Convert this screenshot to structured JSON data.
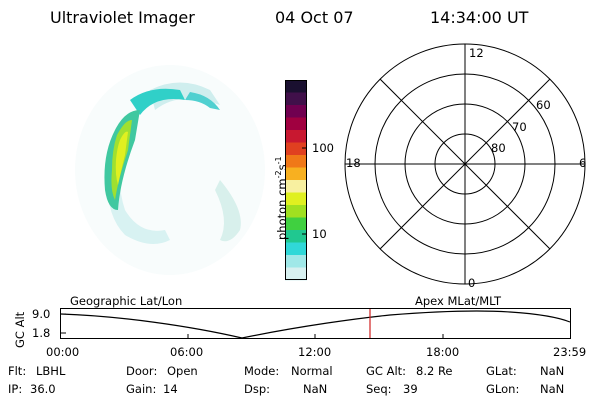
{
  "header": {
    "instrument": "Ultraviolet Imager",
    "date": "04 Oct 07",
    "time": "14:34:00 UT"
  },
  "colorbar": {
    "label": "photon cm^-2 s^-1",
    "label_parts": [
      "photon cm",
      "-2",
      "s",
      "-1"
    ],
    "scale": "log",
    "ticks": [
      "100",
      "10"
    ],
    "colors": [
      "#1a1030",
      "#40104a",
      "#700050",
      "#a00040",
      "#c81830",
      "#e04020",
      "#f07818",
      "#f8b020",
      "#f8f0a0",
      "#e0f020",
      "#a0e020",
      "#40d040",
      "#20c890",
      "#30d8d8",
      "#a0e8e8",
      "#d8f0f0"
    ]
  },
  "polar_plot": {
    "mlt_labels": {
      "top": "12",
      "left": "18",
      "right": "6",
      "bottom": "0"
    },
    "lat_labels": [
      "60",
      "70",
      "80"
    ]
  },
  "timeline": {
    "left_title": "Geographic Lat/Lon",
    "right_title": "Apex MLat/MLT",
    "y_axis_label": "GC Alt",
    "y_ticks": [
      "9.0",
      "1.8"
    ],
    "x_ticks": [
      "00:00",
      "06:00",
      "12:00",
      "18:00",
      "23:59"
    ],
    "current_marker_color": "#d02020"
  },
  "status": {
    "flt_label": "Flt:",
    "flt_value": "LBHL",
    "ip_label": "IP:",
    "ip_value": "36.0",
    "door_label": "Door:",
    "door_value": "Open",
    "gain_label": "Gain:",
    "gain_value": "14",
    "mode_label": "Mode:",
    "mode_value": "Normal",
    "dsp_label": "Dsp:",
    "dsp_value": "NaN",
    "gcalt_label": "GC Alt:",
    "gcalt_value": "8.2 Re",
    "seq_label": "Seq:",
    "seq_value": "39",
    "glat_label": "GLat:",
    "glat_value": "NaN",
    "glon_label": "GLon:",
    "glon_value": "NaN"
  }
}
